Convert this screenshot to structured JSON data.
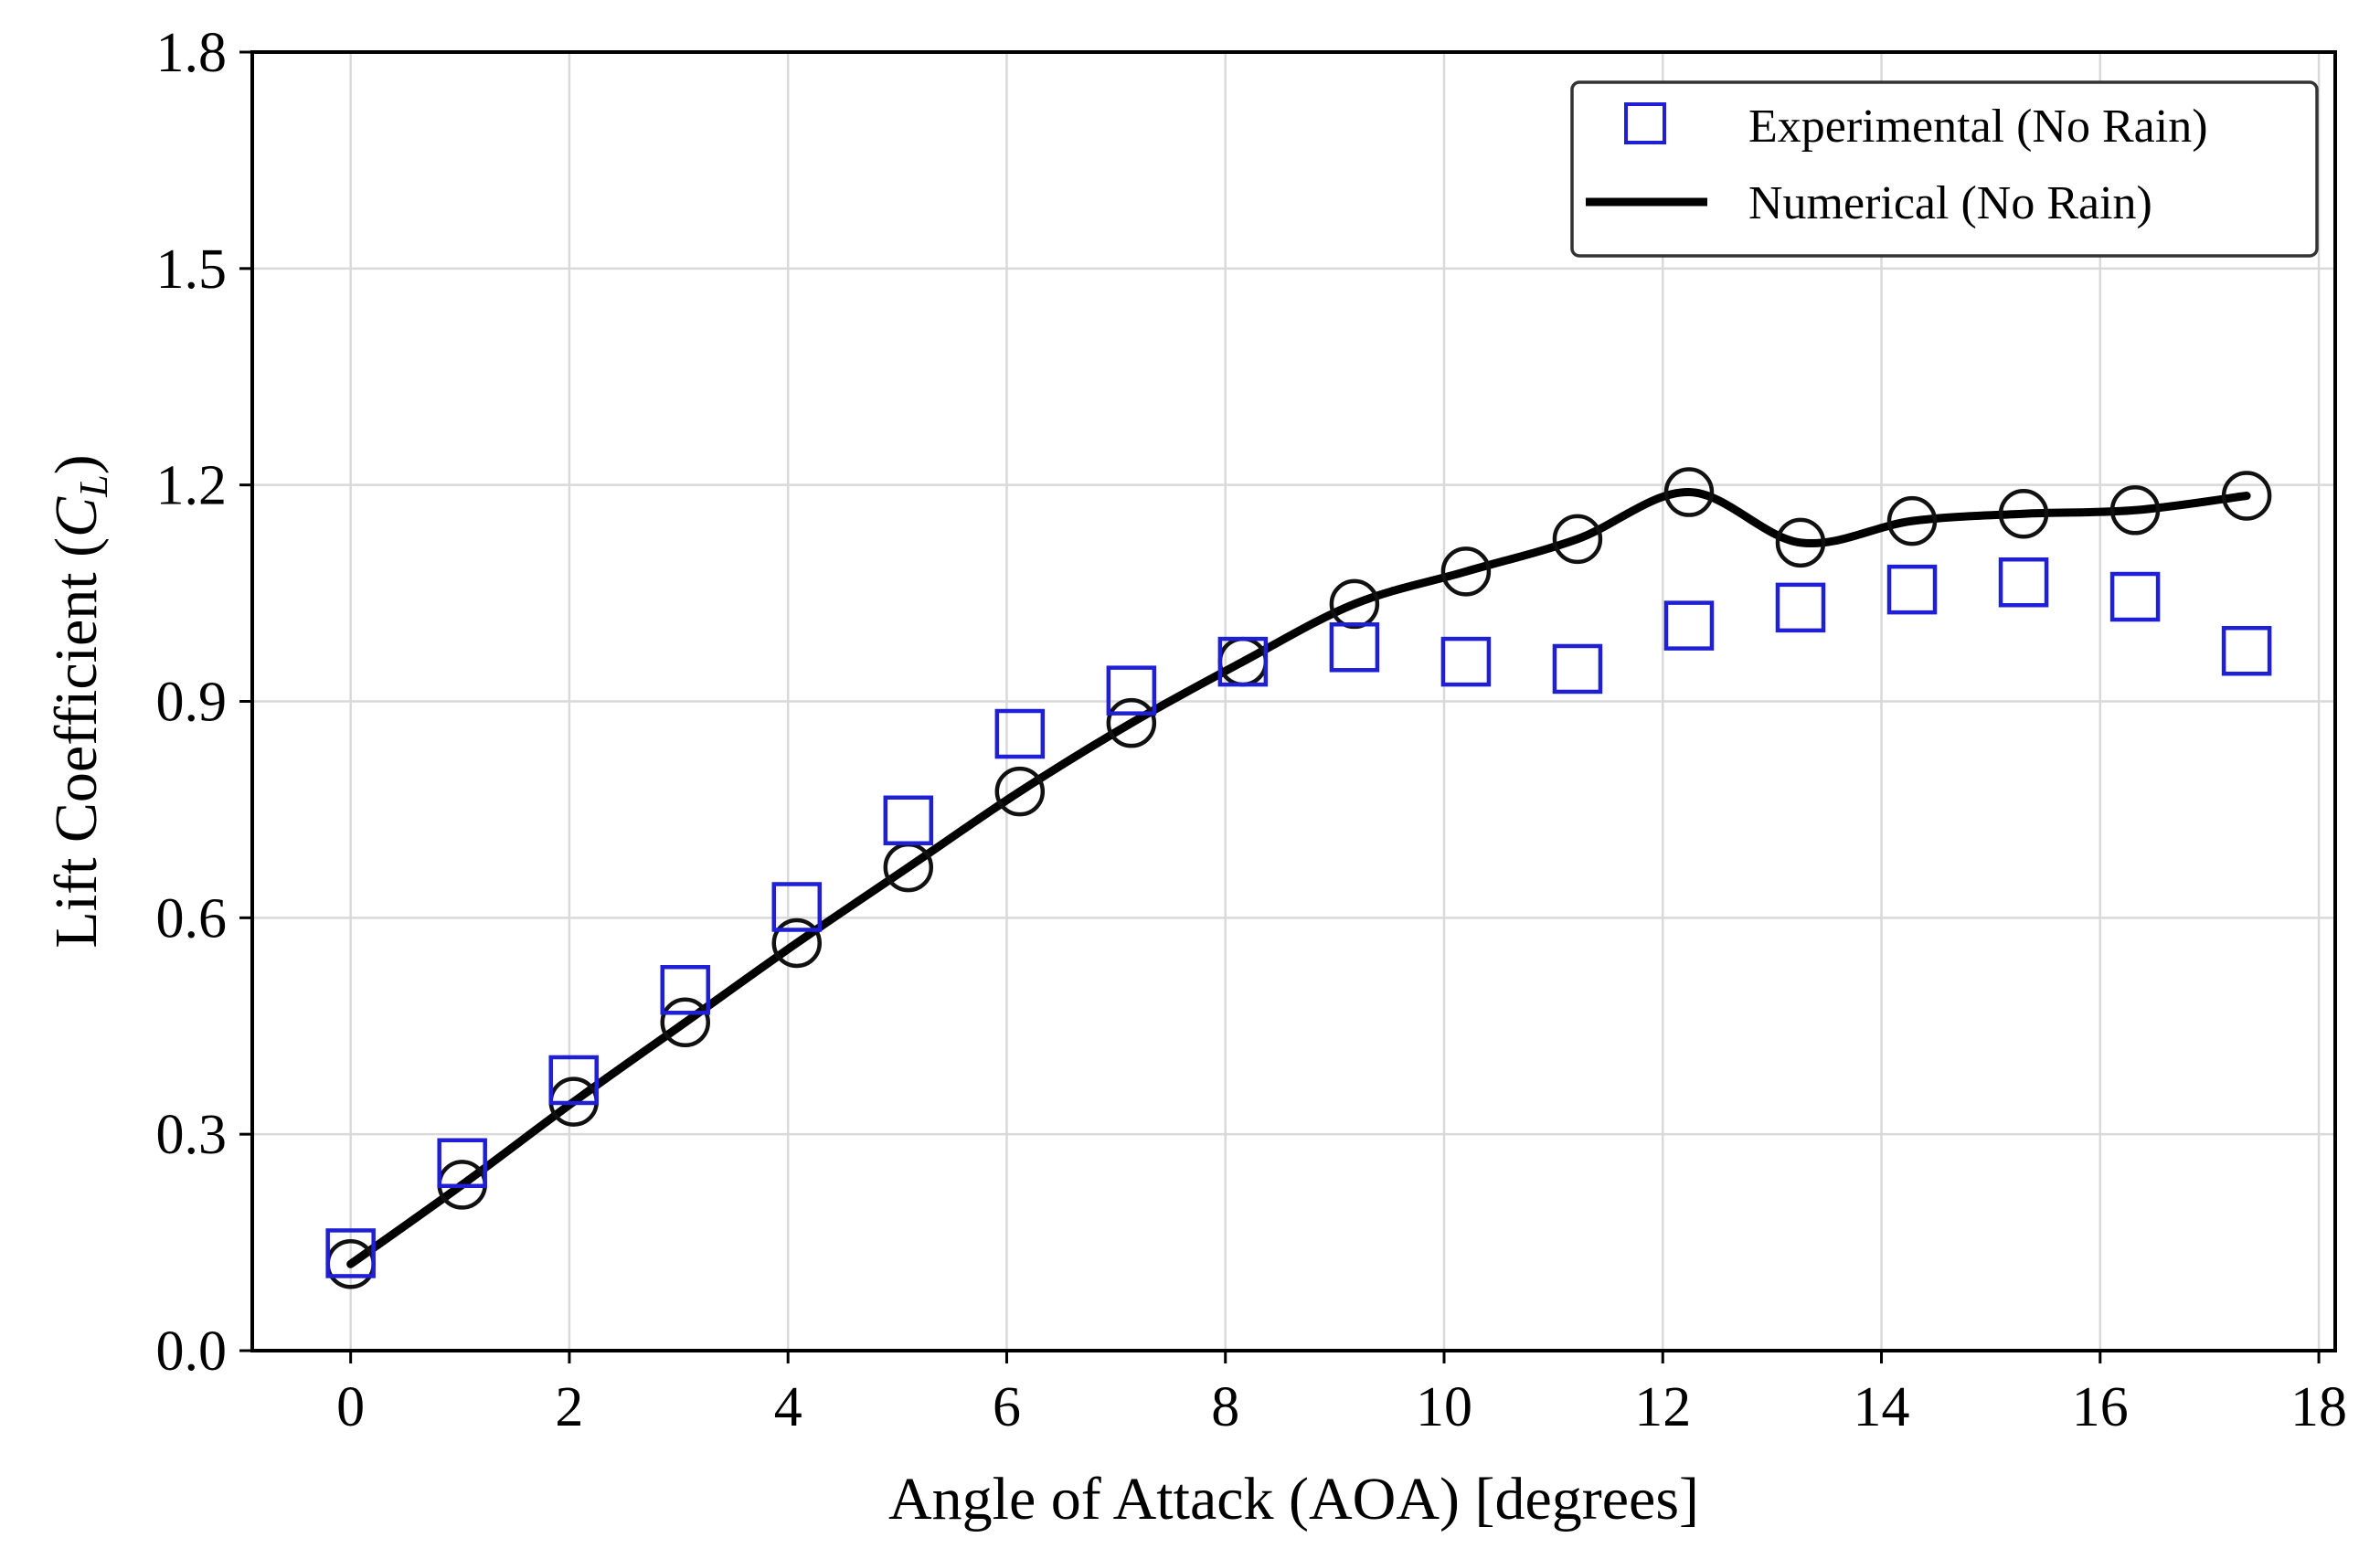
{
  "chart_data": {
    "type": "line",
    "title": "",
    "xlabel": "Angle of Attack (AOA) [degrees]",
    "ylabel_main": "Lift Coefficient (",
    "ylabel_symbol": "C",
    "ylabel_subscript": "L",
    "ylabel_close": ")",
    "xlim": [
      -0.9,
      18.15
    ],
    "ylim": [
      0.0,
      1.8
    ],
    "xticks": [
      0,
      2,
      4,
      6,
      8,
      10,
      12,
      14,
      16,
      18
    ],
    "xtick_labels": [
      "0",
      "2",
      "4",
      "6",
      "8",
      "10",
      "12",
      "14",
      "16",
      "18"
    ],
    "yticks": [
      0.0,
      0.3,
      0.6,
      0.9,
      1.2,
      1.5,
      1.8
    ],
    "ytick_labels": [
      "0.0",
      "0.3",
      "0.6",
      "0.9",
      "1.2",
      "1.5",
      "1.8"
    ],
    "grid": true,
    "legend_position": "top-right",
    "series": [
      {
        "name": "Experimental (No Rain)",
        "kind": "markers",
        "marker": "square",
        "color": "#1f1fd6",
        "x": [
          0.0,
          1.02,
          2.04,
          3.06,
          4.08,
          5.1,
          6.12,
          7.14,
          8.16,
          9.18,
          10.2,
          11.22,
          12.24,
          13.26,
          14.28,
          15.3,
          16.32,
          17.34
        ],
        "y": [
          0.135,
          0.26,
          0.375,
          0.5,
          0.615,
          0.735,
          0.855,
          0.915,
          0.955,
          0.975,
          0.955,
          0.945,
          1.005,
          1.03,
          1.055,
          1.065,
          1.045,
          0.97
        ]
      },
      {
        "name": "Numerical (No Rain)",
        "kind": "line",
        "color": "#000000",
        "x": [
          0.0,
          1.02,
          2.04,
          3.06,
          4.08,
          5.1,
          6.12,
          7.14,
          8.16,
          9.18,
          10.2,
          11.22,
          12.24,
          13.26,
          14.28,
          15.3,
          16.32,
          17.34
        ],
        "y": [
          0.12,
          0.23,
          0.345,
          0.455,
          0.565,
          0.67,
          0.775,
          0.87,
          0.955,
          1.035,
          1.08,
          1.125,
          1.19,
          1.12,
          1.15,
          1.16,
          1.165,
          1.185
        ]
      }
    ]
  }
}
